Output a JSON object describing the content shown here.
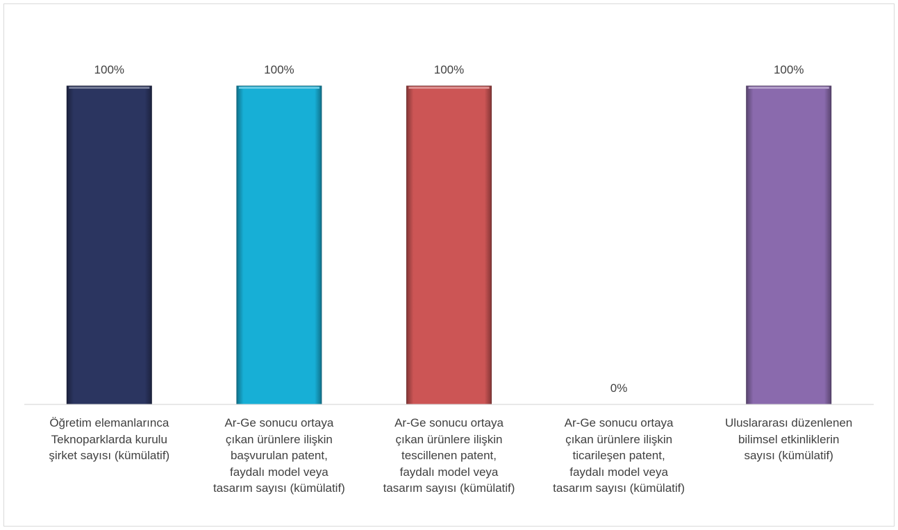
{
  "chart_data": {
    "type": "bar",
    "title": "",
    "xlabel": "",
    "ylabel": "",
    "ylim": [
      0,
      1
    ],
    "grid": false,
    "legend": "none",
    "categories": [
      "Öğretim elemanlarınca Teknoparklarda kurulu şirket sayısı (kümülatif)",
      "Ar-Ge sonucu ortaya çıkan ürünlere ilişkin başvurulan patent, faydalı model veya tasarım sayısı (kümülatif)",
      "Ar-Ge sonucu ortaya çıkan ürünlere ilişkin tescillenen patent, faydalı model veya tasarım sayısı (kümülatif)",
      "Ar-Ge sonucu ortaya çıkan ürünlere ilişkin ticarileşen patent, faydalı model veya tasarım sayısı (kümülatif)",
      "Uluslararası düzenlenen bilimsel etkinliklerin sayısı (kümülatif)"
    ],
    "category_lines": [
      [
        "Öğretim elemanlarınca",
        "Teknoparklarda kurulu",
        "şirket sayısı (kümülatif)"
      ],
      [
        "Ar-Ge sonucu ortaya",
        "çıkan ürünlere ilişkin",
        "başvurulan patent,",
        "faydalı model veya",
        "tasarım sayısı (kümülatif)"
      ],
      [
        "Ar-Ge sonucu ortaya",
        "çıkan ürünlere ilişkin",
        "tescillenen patent,",
        "faydalı model veya",
        "tasarım sayısı (kümülatif)"
      ],
      [
        "Ar-Ge sonucu ortaya",
        "çıkan ürünlere ilişkin",
        "ticarileşen patent,",
        "faydalı model veya",
        "tasarım sayısı (kümülatif)"
      ],
      [
        "Uluslararası düzenlenen",
        "bilimsel etkinliklerin",
        "sayısı (kümülatif)"
      ]
    ],
    "values": [
      1,
      1,
      1,
      0,
      1
    ],
    "data_labels": [
      "100%",
      "100%",
      "100%",
      "0%",
      "100%"
    ],
    "colors": [
      "#2b3560",
      "#17afd6",
      "#cc5555",
      "#7d9a3c",
      "#8a6aad"
    ]
  }
}
